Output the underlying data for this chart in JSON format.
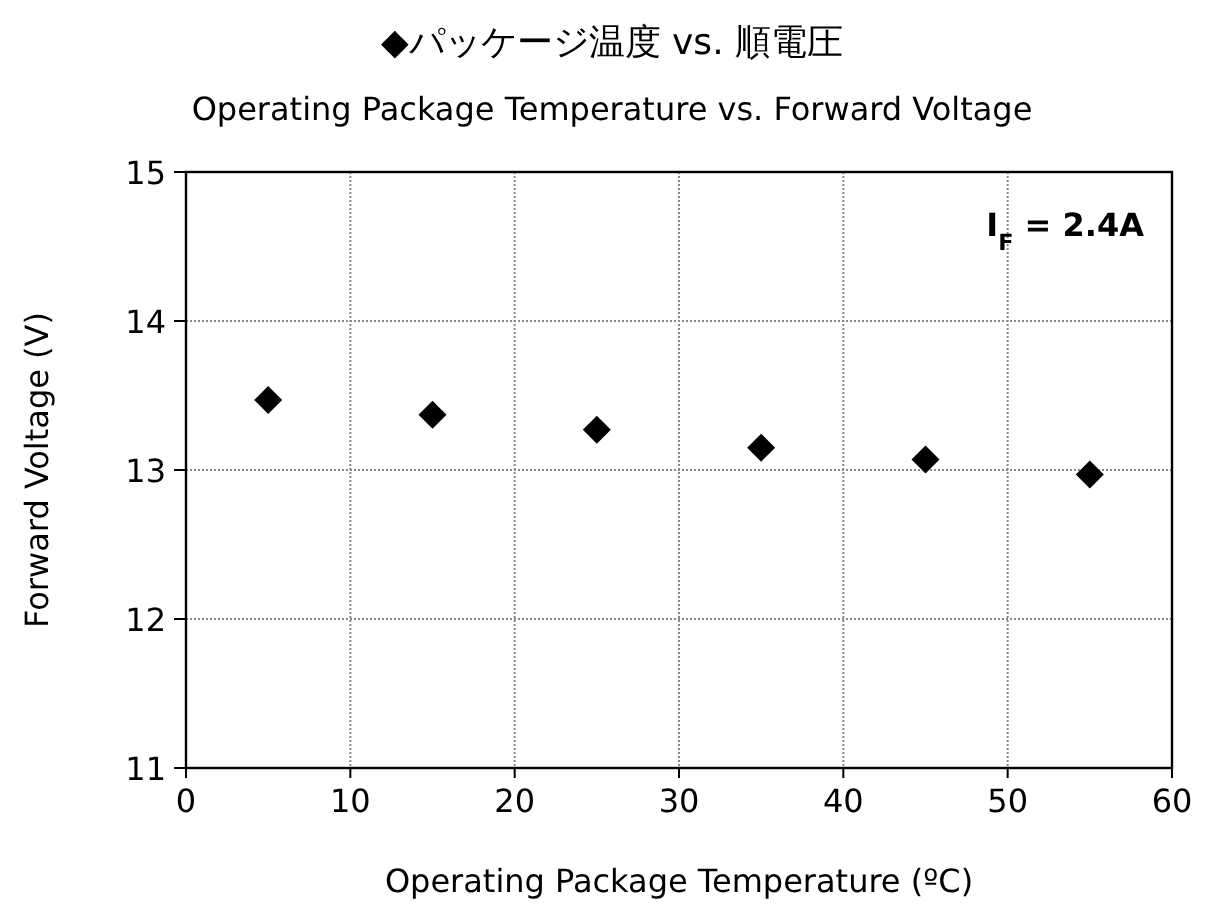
{
  "chart_data": {
    "type": "scatter",
    "title": "◆パッケージ温度 vs. 順電圧",
    "subtitle": "Operating Package Temperature vs. Forward Voltage",
    "xlabel": "Operating Package Temperature (ºC)",
    "ylabel": "Forward Voltage (V)",
    "annotations": [
      "I$_{F}$ = 2.4A"
    ],
    "x": [
      5,
      15,
      25,
      35,
      45,
      55
    ],
    "series": [
      {
        "color": "#000000",
        "values": [
          13.47,
          13.37,
          13.27,
          13.15,
          13.07,
          12.97
        ]
      }
    ],
    "marker": "diamond",
    "grid": true,
    "xlim": [
      0,
      60
    ],
    "xticks": [
      0,
      10,
      20,
      30,
      40,
      50,
      60
    ],
    "ylim": [
      11,
      15
    ],
    "yticks": [
      11,
      12,
      13,
      14,
      15
    ]
  }
}
